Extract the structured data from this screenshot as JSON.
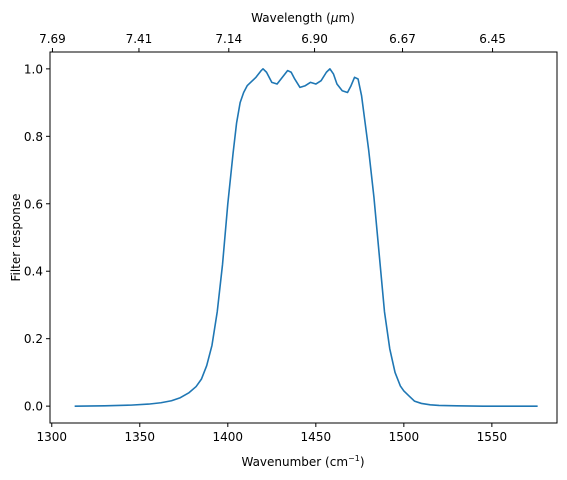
{
  "chart_data": {
    "type": "line",
    "xlabel": "Wavenumber (cm",
    "xlabel_sup": "−1",
    "xlabel_suffix": ")",
    "ylabel": "Filter response",
    "top_xlabel": "Wavelength (",
    "top_xlabel_mu": "μ",
    "top_xlabel_suffix": "m)",
    "xlim": [
      1299,
      1587
    ],
    "ylim": [
      -0.05,
      1.05
    ],
    "x_ticks": [
      1300,
      1350,
      1400,
      1450,
      1500,
      1550
    ],
    "y_ticks": [
      0.0,
      0.2,
      0.4,
      0.6,
      0.8,
      1.0
    ],
    "y_tick_labels": [
      "0.0",
      "0.2",
      "0.4",
      "0.6",
      "0.8",
      "1.0"
    ],
    "top_ticks": [
      7.69,
      7.41,
      7.14,
      6.9,
      6.67,
      6.45
    ],
    "top_tick_labels": [
      "7.69",
      "7.41",
      "7.14",
      "6.90",
      "6.67",
      "6.45"
    ],
    "line_color": "#1f77b4",
    "grid": false,
    "series": [
      {
        "x": [
          1313,
          1330,
          1345,
          1355,
          1362,
          1368,
          1373,
          1378,
          1382,
          1385,
          1388,
          1391,
          1394,
          1397,
          1400,
          1403,
          1405,
          1407,
          1409,
          1411,
          1413,
          1416,
          1419,
          1420,
          1422,
          1425,
          1428,
          1431,
          1434,
          1436,
          1438,
          1441,
          1444,
          1447,
          1450,
          1453,
          1456,
          1458,
          1460,
          1462,
          1465,
          1468,
          1470,
          1472,
          1474,
          1476,
          1478,
          1480,
          1483,
          1486,
          1489,
          1492,
          1495,
          1498,
          1500,
          1503,
          1506,
          1510,
          1515,
          1520,
          1530,
          1545,
          1560,
          1576
        ],
        "y": [
          0.0,
          0.001,
          0.003,
          0.006,
          0.01,
          0.016,
          0.025,
          0.04,
          0.058,
          0.08,
          0.12,
          0.18,
          0.28,
          0.42,
          0.6,
          0.75,
          0.84,
          0.9,
          0.93,
          0.95,
          0.96,
          0.975,
          0.995,
          1.0,
          0.99,
          0.96,
          0.955,
          0.975,
          0.995,
          0.99,
          0.97,
          0.945,
          0.95,
          0.96,
          0.955,
          0.965,
          0.99,
          1.0,
          0.985,
          0.955,
          0.935,
          0.93,
          0.95,
          0.975,
          0.97,
          0.92,
          0.84,
          0.76,
          0.62,
          0.45,
          0.28,
          0.17,
          0.1,
          0.06,
          0.045,
          0.03,
          0.015,
          0.008,
          0.004,
          0.002,
          0.001,
          0.0,
          0.0,
          0.0
        ]
      }
    ]
  }
}
